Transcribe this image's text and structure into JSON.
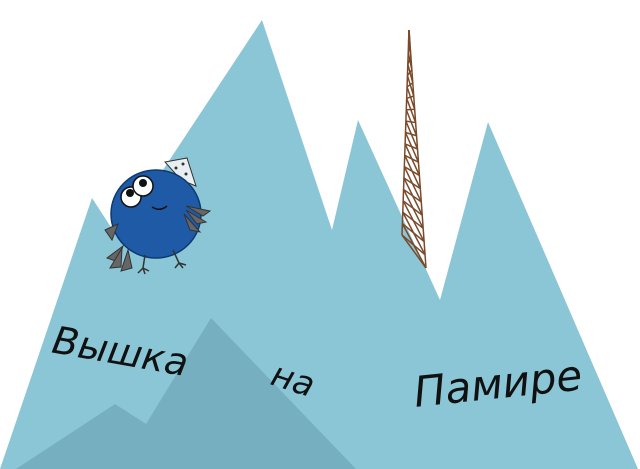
{
  "title": {
    "word_1": "Вышка",
    "word_2": "на",
    "word_3": "Памире"
  },
  "colors": {
    "mountain": "#8ac6d6",
    "mountain_shadow": "#76afc0",
    "tower": "#7a4a2a",
    "bird_body": "#1e5aa6",
    "bird_wing": "#666666",
    "hat": "#e8eef2",
    "text": "#111111"
  },
  "icons": {
    "character": "blue-bird-icon",
    "tower": "lattice-tower-icon"
  }
}
